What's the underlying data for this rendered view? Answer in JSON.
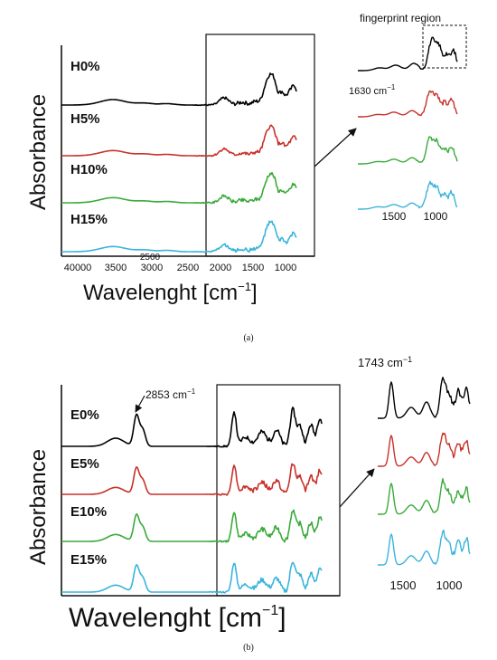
{
  "chart_data": [
    {
      "type": "line",
      "panel_label": "(a)",
      "ylabel": "Absorbance",
      "xlabel": "Wavelenght [cm",
      "xlabel_sup": "−1",
      "xlabel_close": "]",
      "x_ticks": [
        "40000",
        "3500",
        "3000",
        "2500",
        "2000",
        "1500",
        "1000"
      ],
      "extra_tick": "2500",
      "series": [
        {
          "name": "H0%",
          "color": "#000000"
        },
        {
          "name": "H5%",
          "color": "#c8312a"
        },
        {
          "name": "H10%",
          "color": "#3aaa3a"
        },
        {
          "name": "H15%",
          "color": "#3ab4dc"
        }
      ],
      "inset": {
        "title": "fingerprint region",
        "annotation": "1630 cm",
        "annotation_sup": "−1",
        "x_ticks": [
          "1500",
          "1000"
        ]
      }
    },
    {
      "type": "line",
      "panel_label": "(b)",
      "ylabel": "Absorbance",
      "xlabel": "Wavelenght [cm",
      "xlabel_sup": "−1",
      "xlabel_close": "]",
      "peak_annotation": "2853 cm",
      "peak_annotation_sup": "−1",
      "series": [
        {
          "name": "E0%",
          "color": "#000000"
        },
        {
          "name": "E5%",
          "color": "#c8312a"
        },
        {
          "name": "E10%",
          "color": "#3aaa3a"
        },
        {
          "name": "E15%",
          "color": "#3ab4dc"
        }
      ],
      "inset": {
        "annotation": "1743 cm",
        "annotation_sup": "−1",
        "x_ticks": [
          "1500",
          "1000"
        ]
      }
    }
  ]
}
